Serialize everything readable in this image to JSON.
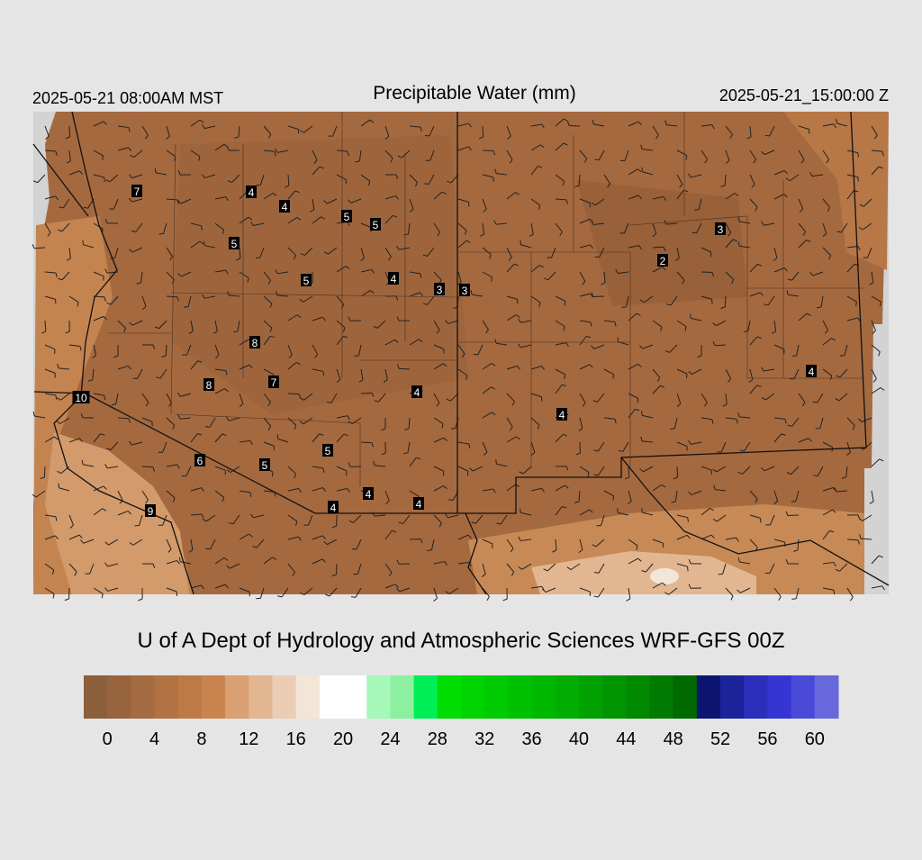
{
  "header": {
    "left": "2025-05-21 08:00AM MST",
    "title": "Precipitable Water (mm)",
    "right": "2025-05-21_15:00:00 Z"
  },
  "map": {
    "station_values": [
      7,
      4,
      4,
      5,
      5,
      5,
      3,
      2,
      5,
      4,
      3,
      3,
      8,
      7,
      8,
      10,
      4,
      4,
      4,
      5,
      6,
      5,
      4,
      4,
      4,
      9
    ]
  },
  "credit": "U of A Dept of Hydrology and Atmospheric Sciences WRF-GFS 00Z",
  "colorbar": {
    "clim": [
      -2,
      62
    ],
    "colors": [
      "#8b5e3c",
      "#98643e",
      "#a56b41",
      "#b17344",
      "#bd7a47",
      "#c9844e",
      "#d9a073",
      "#e2b690",
      "#ebcdb5",
      "#f4e5d9",
      "#ffffff",
      "#ffffff",
      "#a6f8ba",
      "#8cf0a0",
      "#00ee55",
      "#00dd00",
      "#00d400",
      "#00cb00",
      "#00c100",
      "#00b700",
      "#00ad00",
      "#00a100",
      "#009500",
      "#008800",
      "#007a00",
      "#006a00",
      "#0c1670",
      "#1a239a",
      "#2a2ebb",
      "#3535d4",
      "#4a4ad8",
      "#6868dd"
    ],
    "ticks": [
      0,
      4,
      8,
      12,
      16,
      20,
      24,
      28,
      32,
      36,
      40,
      44,
      48,
      52,
      56,
      60
    ]
  }
}
